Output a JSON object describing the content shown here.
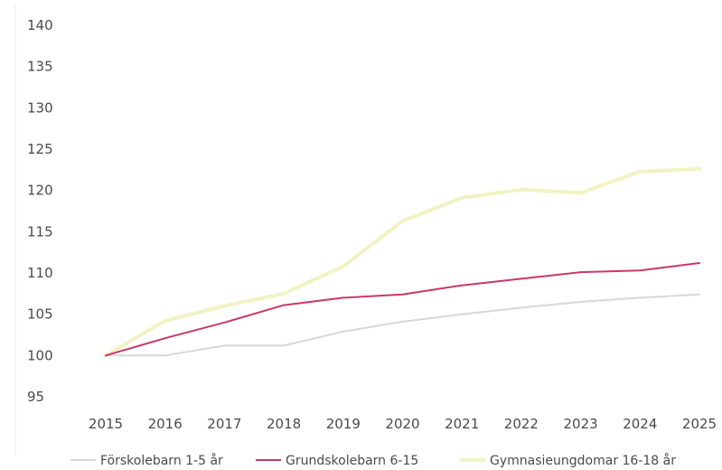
{
  "chart_data": {
    "type": "line",
    "title": "",
    "xlabel": "",
    "ylabel": "",
    "x": [
      "2015",
      "2016",
      "2017",
      "2018",
      "2019",
      "2020",
      "2021",
      "2022",
      "2023",
      "2024",
      "2025"
    ],
    "ylim": [
      95,
      140
    ],
    "yticks": [
      "95",
      "100",
      "105",
      "110",
      "115",
      "120",
      "125",
      "130",
      "135",
      "140"
    ],
    "grid": false,
    "legend": "bottom",
    "series": [
      {
        "name": "Förskolebarn 1-5 år",
        "color": "#d8d8d8",
        "values": [
          100.0,
          100.0,
          101.2,
          101.2,
          102.9,
          104.1,
          105.0,
          105.8,
          106.5,
          107.0,
          107.4
        ]
      },
      {
        "name": "Grundskolebarn 6-15",
        "color": "#c8386a",
        "values": [
          100.0,
          102.1,
          104.0,
          106.1,
          107.0,
          107.4,
          108.5,
          109.3,
          110.1,
          110.3,
          111.2
        ]
      },
      {
        "name": "Gymnasieungdomar 16-18 år",
        "color": "#f2f2c4",
        "values": [
          100.0,
          104.2,
          106.0,
          107.5,
          110.8,
          116.3,
          119.1,
          120.1,
          119.7,
          122.3,
          122.6
        ]
      }
    ]
  }
}
